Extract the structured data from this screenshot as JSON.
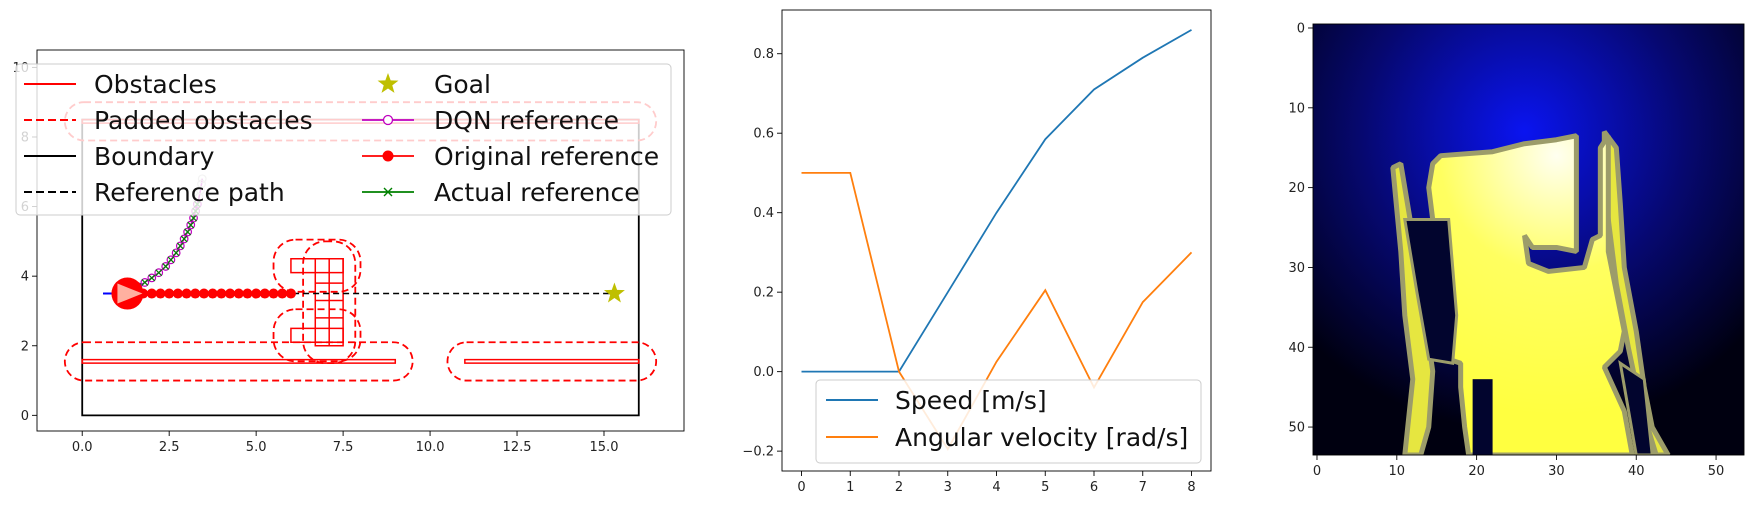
{
  "chart_data": [
    {
      "type": "line",
      "title": "",
      "xlabel": "",
      "ylabel": "",
      "xlim": [
        -1.3,
        17.3
      ],
      "ylim": [
        -0.45,
        10.5
      ],
      "xticks": [
        "0.0",
        "2.5",
        "5.0",
        "7.5",
        "10.0",
        "12.5",
        "15.0"
      ],
      "xtick_values": [
        0,
        2.5,
        5,
        7.5,
        10,
        12.5,
        15
      ],
      "yticks": [
        "0",
        "2",
        "4",
        "6",
        "8",
        "10"
      ],
      "ytick_values": [
        0,
        2,
        4,
        6,
        8,
        10
      ],
      "legend": {
        "location": "upper-left",
        "entries": [
          {
            "label": "Obstacles",
            "color": "#ff0000",
            "style": "solid"
          },
          {
            "label": "Padded obstacles",
            "color": "#ff0000",
            "style": "dashed"
          },
          {
            "label": "Boundary",
            "color": "#000000",
            "style": "solid"
          },
          {
            "label": "Reference path",
            "color": "#000000",
            "style": "dashed"
          },
          {
            "label": "Goal",
            "color": "#bfbf00",
            "style": "star"
          },
          {
            "label": "DQN reference",
            "color": "#bf00bf",
            "style": "open-circle"
          },
          {
            "label": "Original reference",
            "color": "#ff0000",
            "style": "filled-circle"
          },
          {
            "label": "Actual reference",
            "color": "#008000",
            "style": "x"
          }
        ]
      },
      "boundary": [
        [
          0,
          0
        ],
        [
          16,
          0
        ],
        [
          16,
          8.5
        ],
        [
          0,
          8.5
        ]
      ],
      "obstacles": [
        {
          "name": "lower-left-wall",
          "points": [
            [
              0,
              1.5
            ],
            [
              9,
              1.5
            ],
            [
              9,
              1.6
            ],
            [
              0,
              1.6
            ]
          ]
        },
        {
          "name": "lower-right-wall",
          "points": [
            [
              11,
              1.5
            ],
            [
              16,
              1.5
            ],
            [
              16,
              1.6
            ],
            [
              11,
              1.6
            ]
          ]
        },
        {
          "name": "upper-wall",
          "points": [
            [
              0,
              8.4
            ],
            [
              16,
              8.4
            ],
            [
              16,
              8.5
            ],
            [
              0,
              8.5
            ]
          ]
        },
        {
          "name": "h-block-top",
          "points": [
            [
              6,
              4.1
            ],
            [
              7.5,
              4.1
            ],
            [
              7.5,
              4.5
            ],
            [
              6,
              4.5
            ]
          ]
        },
        {
          "name": "h-block-bottom",
          "points": [
            [
              6,
              2.1
            ],
            [
              7.5,
              2.1
            ],
            [
              7.5,
              2.5
            ],
            [
              6,
              2.5
            ]
          ]
        },
        {
          "name": "h-block-stem",
          "points": [
            [
              6.7,
              2.0
            ],
            [
              7.5,
              2.0
            ],
            [
              7.5,
              4.5
            ],
            [
              6.7,
              4.5
            ]
          ]
        }
      ],
      "padded_obstacles": [
        {
          "name": "pad-lower-left",
          "center": [
            4.5,
            1.55
          ],
          "width": 10.0,
          "height": 1.1
        },
        {
          "name": "pad-lower-right",
          "center": [
            13.5,
            1.55
          ],
          "width": 6.0,
          "height": 1.1
        },
        {
          "name": "pad-upper",
          "center": [
            8.0,
            8.45
          ],
          "width": 17.0,
          "height": 1.1
        },
        {
          "name": "pad-h-top",
          "center": [
            6.75,
            4.3
          ],
          "width": 2.5,
          "height": 1.5
        },
        {
          "name": "pad-h-bottom",
          "center": [
            6.75,
            2.3
          ],
          "width": 2.5,
          "height": 1.5
        },
        {
          "name": "pad-h-stem",
          "center": [
            7.1,
            3.25
          ],
          "width": 1.5,
          "height": 3.5
        }
      ],
      "reference_path": {
        "x": [
          0.6,
          15.3
        ],
        "y": [
          3.5,
          3.5
        ]
      },
      "goal": {
        "x": 15.3,
        "y": 3.5
      },
      "robot": {
        "x": 1.3,
        "y": 3.5
      },
      "original_reference": {
        "x": [
          1.3,
          1.5,
          1.75,
          2.0,
          2.25,
          2.5,
          2.75,
          3.0,
          3.25,
          3.5,
          3.75,
          4.0,
          4.25,
          4.5,
          4.75,
          5.0,
          5.25,
          5.5,
          5.75,
          6.0
        ],
        "y": [
          3.5,
          3.5,
          3.5,
          3.5,
          3.5,
          3.5,
          3.5,
          3.5,
          3.5,
          3.5,
          3.5,
          3.5,
          3.5,
          3.5,
          3.5,
          3.5,
          3.5,
          3.5,
          3.5,
          3.5
        ]
      },
      "dqn_reference": {
        "x": [
          1.6,
          1.8,
          2.0,
          2.2,
          2.4,
          2.55,
          2.7,
          2.82,
          2.93,
          3.03,
          3.12,
          3.2,
          3.26,
          3.31,
          3.36,
          3.4,
          3.43,
          3.45
        ],
        "y": [
          3.7,
          3.82,
          3.95,
          4.1,
          4.28,
          4.47,
          4.67,
          4.87,
          5.07,
          5.27,
          5.47,
          5.67,
          5.87,
          6.07,
          6.27,
          6.47,
          6.65,
          6.8
        ]
      },
      "actual_reference": {
        "x": [
          1.6,
          1.8,
          2.0,
          2.2,
          2.4,
          2.55,
          2.7,
          2.82,
          2.93,
          3.03,
          3.12,
          3.2,
          3.26,
          3.31
        ],
        "y": [
          3.7,
          3.82,
          3.95,
          4.1,
          4.28,
          4.47,
          4.67,
          4.87,
          5.07,
          5.27,
          5.47,
          5.67,
          5.87,
          6.07
        ]
      }
    },
    {
      "type": "line",
      "title": "",
      "xlabel": "",
      "ylabel": "",
      "xlim": [
        -0.4,
        8.4
      ],
      "ylim": [
        -0.25,
        0.91
      ],
      "xticks": [
        "0",
        "1",
        "2",
        "3",
        "4",
        "5",
        "6",
        "7",
        "8"
      ],
      "xtick_values": [
        0,
        1,
        2,
        3,
        4,
        5,
        6,
        7,
        8
      ],
      "yticks": [
        "−0.2",
        "0.0",
        "0.2",
        "0.4",
        "0.6",
        "0.8"
      ],
      "ytick_values": [
        -0.2,
        0,
        0.2,
        0.4,
        0.6,
        0.8
      ],
      "legend": {
        "location": "lower-center"
      },
      "x": [
        0,
        1,
        2,
        3,
        4,
        5,
        6,
        7,
        8
      ],
      "series": [
        {
          "name": "Speed [m/s]",
          "color": "#1f77b4",
          "values": [
            0,
            0,
            0,
            0.2,
            0.4,
            0.585,
            0.71,
            0.79,
            0.86
          ]
        },
        {
          "name": "Angular velocity [rad/s]",
          "color": "#ff7f0e",
          "values": [
            0.5,
            0.5,
            0,
            -0.195,
            0.025,
            0.205,
            -0.04,
            0.175,
            0.3
          ]
        }
      ]
    },
    {
      "type": "heatmap",
      "title": "",
      "xlabel": "",
      "ylabel": "",
      "xlim": [
        -0.5,
        53.5
      ],
      "ylim": [
        53.5,
        -0.5
      ],
      "xticks": [
        "0",
        "10",
        "20",
        "30",
        "40",
        "50"
      ],
      "xtick_values": [
        0,
        10,
        20,
        30,
        40,
        50
      ],
      "yticks": [
        "0",
        "10",
        "20",
        "30",
        "40",
        "50"
      ],
      "ytick_values": [
        0,
        10,
        20,
        30,
        40,
        50
      ],
      "colors": {
        "background_far": "#000010",
        "background_near": "#0a14f0",
        "free_space": "#ffff40",
        "free_space_bright": "#fffff0",
        "edge": "#9c9c6a"
      },
      "free_space_polygon": [
        [
          14.5,
          17
        ],
        [
          15.5,
          16
        ],
        [
          22,
          15.5
        ],
        [
          26,
          14.5
        ],
        [
          30,
          14
        ],
        [
          32.5,
          13.5
        ],
        [
          32.5,
          28
        ],
        [
          30,
          27.5
        ],
        [
          27,
          27.5
        ],
        [
          26,
          26
        ],
        [
          26.5,
          29.5
        ],
        [
          29,
          30.5
        ],
        [
          33.5,
          30
        ],
        [
          34.5,
          26.5
        ],
        [
          35.5,
          26
        ],
        [
          35.5,
          15
        ],
        [
          36.5,
          13.5
        ],
        [
          36.5,
          28
        ],
        [
          37.5,
          33
        ],
        [
          38.5,
          38
        ],
        [
          38,
          40.5
        ],
        [
          36,
          42.5
        ],
        [
          38.5,
          48
        ],
        [
          39.5,
          53.5
        ],
        [
          19,
          53.5
        ],
        [
          18.5,
          50
        ],
        [
          18,
          45
        ],
        [
          18,
          42
        ],
        [
          16.5,
          41.5
        ],
        [
          16,
          36
        ],
        [
          15,
          28
        ],
        [
          14,
          20
        ]
      ],
      "dark_strip_polygon": [
        [
          16.5,
          24
        ],
        [
          17.5,
          36
        ],
        [
          17,
          42
        ],
        [
          14,
          41.5
        ],
        [
          12.5,
          33
        ],
        [
          11,
          24
        ]
      ],
      "dark_hole_polygon": [
        [
          38,
          42
        ],
        [
          41,
          44
        ],
        [
          42,
          53.5
        ],
        [
          40,
          53.5
        ]
      ],
      "left_strip_polygon": [
        [
          9.5,
          17.5
        ],
        [
          10.5,
          17
        ],
        [
          12,
          26
        ],
        [
          13.5,
          36
        ],
        [
          14.5,
          43
        ],
        [
          14,
          50
        ],
        [
          13,
          53.5
        ],
        [
          11,
          53.5
        ],
        [
          12,
          44
        ],
        [
          11,
          36
        ],
        [
          10.5,
          28
        ]
      ],
      "right_strip_polygon": [
        [
          36,
          13
        ],
        [
          37.5,
          15
        ],
        [
          38,
          22
        ],
        [
          38.5,
          30
        ],
        [
          40,
          38
        ],
        [
          41,
          45
        ],
        [
          42,
          50
        ],
        [
          44,
          53.5
        ],
        [
          42.5,
          53.5
        ],
        [
          40.5,
          47
        ],
        [
          39,
          40
        ],
        [
          37.5,
          32
        ],
        [
          36,
          20
        ]
      ]
    }
  ]
}
